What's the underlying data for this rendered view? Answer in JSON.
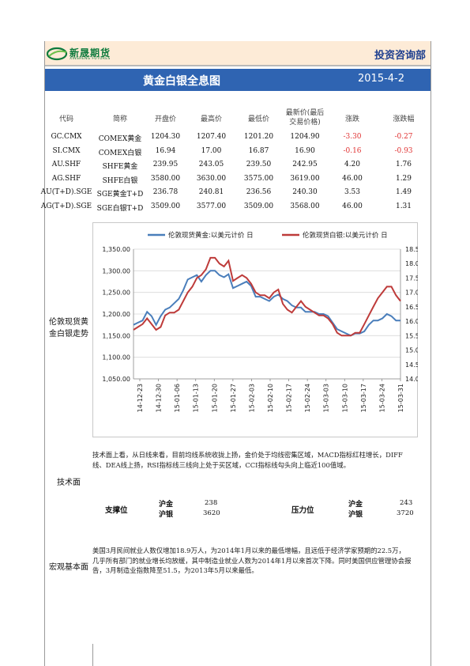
{
  "header": {
    "company_name": "新晟期货",
    "company_sub": "XINSHENG FUTURES",
    "department": "投资咨询部",
    "title": "黄金白银全息图",
    "date": "2015-4-2"
  },
  "table": {
    "headers": [
      "代码",
      "简称",
      "开盘价",
      "最高价",
      "最低价",
      "最新价(最后",
      "交易价格)",
      "涨跌",
      "涨跌幅"
    ],
    "rows": [
      {
        "code": "GC.CMX",
        "name": "COMEX黄金",
        "open": "1204.30",
        "high": "1207.40",
        "low": "1201.20",
        "last": "1204.90",
        "change": "-3.30",
        "pct": "-0.27",
        "negative": true
      },
      {
        "code": "SI.CMX",
        "name": "COMEX白银",
        "open": "16.94",
        "high": "17.00",
        "low": "16.87",
        "last": "16.90",
        "change": "-0.16",
        "pct": "-0.93",
        "negative": true
      },
      {
        "code": "AU.SHF",
        "name": "SHFE黄金",
        "open": "239.95",
        "high": "243.05",
        "low": "239.50",
        "last": "242.95",
        "change": "4.20",
        "pct": "1.76",
        "negative": false
      },
      {
        "code": "AG.SHF",
        "name": "SHFE白银",
        "open": "3580.00",
        "high": "3630.00",
        "low": "3575.00",
        "last": "3619.00",
        "change": "46.00",
        "pct": "1.29",
        "negative": false
      },
      {
        "code": "AU(T+D).SGE",
        "name": "SGE黄金T+D",
        "open": "236.78",
        "high": "240.81",
        "low": "236.56",
        "last": "240.30",
        "change": "3.53",
        "pct": "1.49",
        "negative": false
      },
      {
        "code": "AG(T+D).SGE",
        "name": "SGE白银T+D",
        "open": "3509.00",
        "high": "3577.00",
        "low": "3509.00",
        "last": "3568.00",
        "change": "46.00",
        "pct": "1.31",
        "negative": false
      }
    ]
  },
  "chart_section": {
    "side_label_1": "伦敦现货黄",
    "side_label_2": "金白银走势"
  },
  "chart_data": {
    "type": "line",
    "series": [
      {
        "name": "伦敦现货黄金:以美元计价 日",
        "color": "#4a7ebb",
        "axis": "left",
        "values": [
          1175,
          1180,
          1185,
          1205,
          1195,
          1175,
          1195,
          1210,
          1215,
          1225,
          1235,
          1255,
          1280,
          1285,
          1290,
          1275,
          1290,
          1300,
          1300,
          1290,
          1285,
          1292,
          1260,
          1265,
          1270,
          1275,
          1265,
          1240,
          1240,
          1235,
          1230,
          1240,
          1245,
          1235,
          1230,
          1220,
          1215,
          1215,
          1205,
          1205,
          1205,
          1200,
          1200,
          1195,
          1180,
          1165,
          1160,
          1155,
          1150,
          1155,
          1155,
          1160,
          1175,
          1185,
          1185,
          1190,
          1200,
          1195,
          1185,
          1185
        ]
      },
      {
        "name": "伦敦现货白银:以美元计价 日",
        "color": "#be3b3a",
        "axis": "right",
        "values": [
          15.7,
          15.8,
          15.9,
          16.1,
          15.9,
          15.7,
          15.8,
          16.2,
          16.3,
          16.3,
          16.4,
          16.7,
          17.0,
          17.2,
          17.5,
          17.6,
          17.8,
          18.2,
          18.2,
          18.0,
          17.9,
          18.1,
          17.4,
          17.5,
          17.6,
          17.5,
          17.3,
          17.0,
          16.9,
          16.9,
          16.8,
          17.0,
          17.1,
          16.6,
          16.4,
          16.3,
          16.5,
          16.7,
          16.5,
          16.4,
          16.3,
          16.2,
          16.2,
          16.1,
          15.9,
          15.6,
          15.5,
          15.5,
          15.5,
          15.6,
          15.6,
          15.9,
          16.2,
          16.5,
          16.8,
          17.0,
          17.2,
          17.2,
          16.9,
          16.7
        ]
      }
    ],
    "x_ticks": [
      "14-12-23",
      "14-12-30",
      "15-01-06",
      "15-01-13",
      "15-01-20",
      "15-01-27",
      "15-02-03",
      "15-02-10",
      "15-02-17",
      "15-02-24",
      "15-03-03",
      "15-03-10",
      "15-03-17",
      "15-03-24",
      "15-03-31"
    ],
    "y_left_ticks": [
      "1,350.00",
      "1,300.00",
      "1,250.00",
      "1,200.00",
      "1,150.00",
      "1,100.00",
      "1,050.00"
    ],
    "y_right_ticks": [
      "18.50",
      "18.00",
      "17.50",
      "17.00",
      "16.50",
      "16.00",
      "15.50",
      "15.00",
      "14.50",
      "14.00"
    ],
    "ylim_left": [
      1050,
      1350
    ],
    "ylim_right": [
      14.0,
      18.5
    ],
    "legend_position": "top"
  },
  "technical": {
    "label": "技术面",
    "text": "技术面上看，从日线来看，目前均线系统收拢上扬，金价处于均线密集区域，MACD指标红柱增长，DIFF线、DEA线上扬，RSI指标线三线向上处于买区域，CCI指标线勾头向上临近100值域。",
    "support_label": "支撑位",
    "resistance_label": "压力位",
    "au_label": "沪金",
    "ag_label": "沪银",
    "support_au": "238",
    "support_ag": "3620",
    "resistance_au": "243",
    "resistance_ag": "3720"
  },
  "macro": {
    "label": "宏观基本面",
    "text": "美国3月民间就业人数仅增加18.9万人，为2014年1月以来的最低增幅，且远低于经济学家预期的22.5万，几乎所有部门的就业增长均放缓，其中制造业就业人数为2014年1月以来首次下降。同时美国供应管理协会报告，3月制造业指数降至51.5，为2013年5月以来最低。"
  }
}
